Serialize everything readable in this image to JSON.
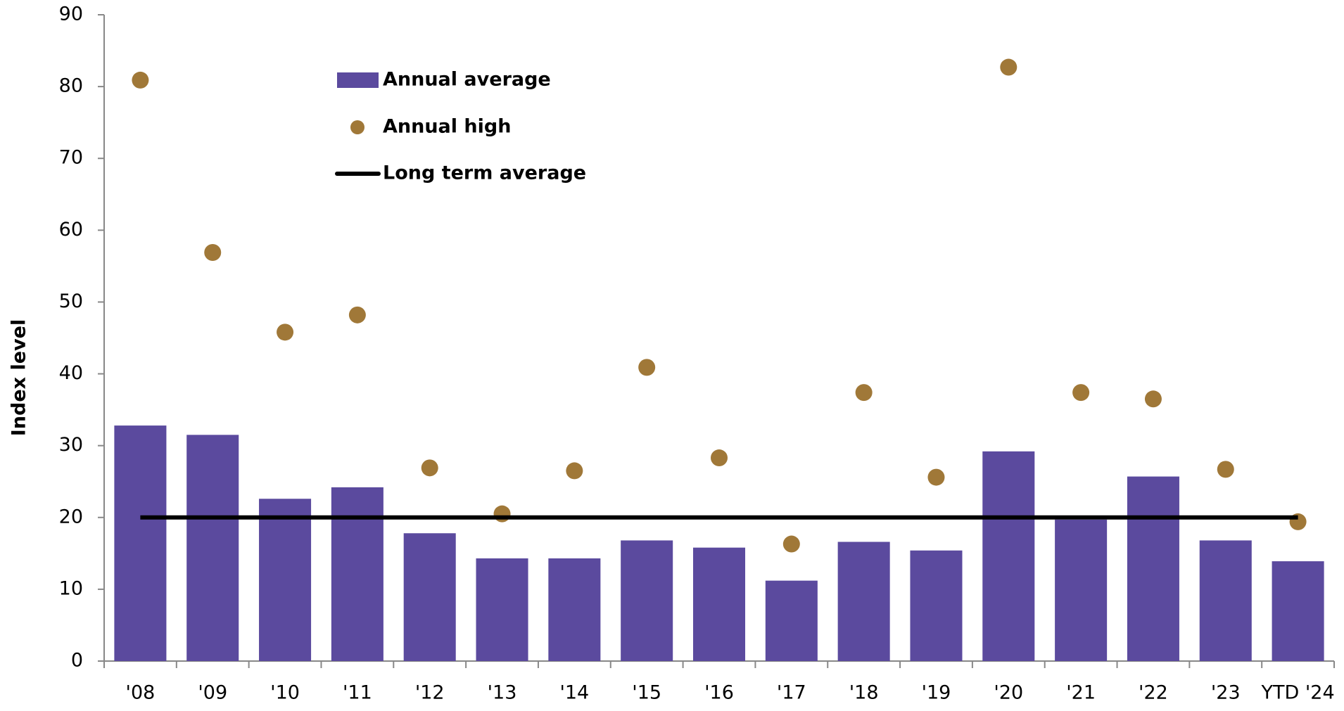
{
  "chart_data": {
    "type": "bar",
    "y_label": "Index level",
    "categories": [
      "'08",
      "'09",
      "'10",
      "'11",
      "'12",
      "'13",
      "'14",
      "'15",
      "'16",
      "'17",
      "'18",
      "'19",
      "'20",
      "'21",
      "'22",
      "'23",
      "YTD '24"
    ],
    "series": [
      {
        "name": "Annual average",
        "type": "bar",
        "color": "#5b4a9e",
        "values": [
          32.8,
          31.5,
          22.6,
          24.2,
          17.8,
          14.3,
          14.3,
          16.8,
          15.8,
          11.2,
          16.6,
          15.4,
          29.2,
          19.7,
          25.7,
          16.8,
          13.9
        ]
      },
      {
        "name": "Annual high",
        "type": "scatter",
        "color": "#a07838",
        "values": [
          80.9,
          56.9,
          45.8,
          48.2,
          26.9,
          20.5,
          26.5,
          40.9,
          28.3,
          16.3,
          37.4,
          25.6,
          82.7,
          37.4,
          36.5,
          26.7,
          19.4
        ]
      },
      {
        "name": "Long term average",
        "type": "line",
        "color": "#000000",
        "values": [
          20,
          20,
          20,
          20,
          20,
          20,
          20,
          20,
          20,
          20,
          20,
          20,
          20,
          20,
          20,
          20,
          20
        ]
      }
    ],
    "ylim": [
      0,
      90
    ],
    "yticks": [
      0,
      10,
      20,
      30,
      40,
      50,
      60,
      70,
      80,
      90
    ],
    "grid": false
  }
}
